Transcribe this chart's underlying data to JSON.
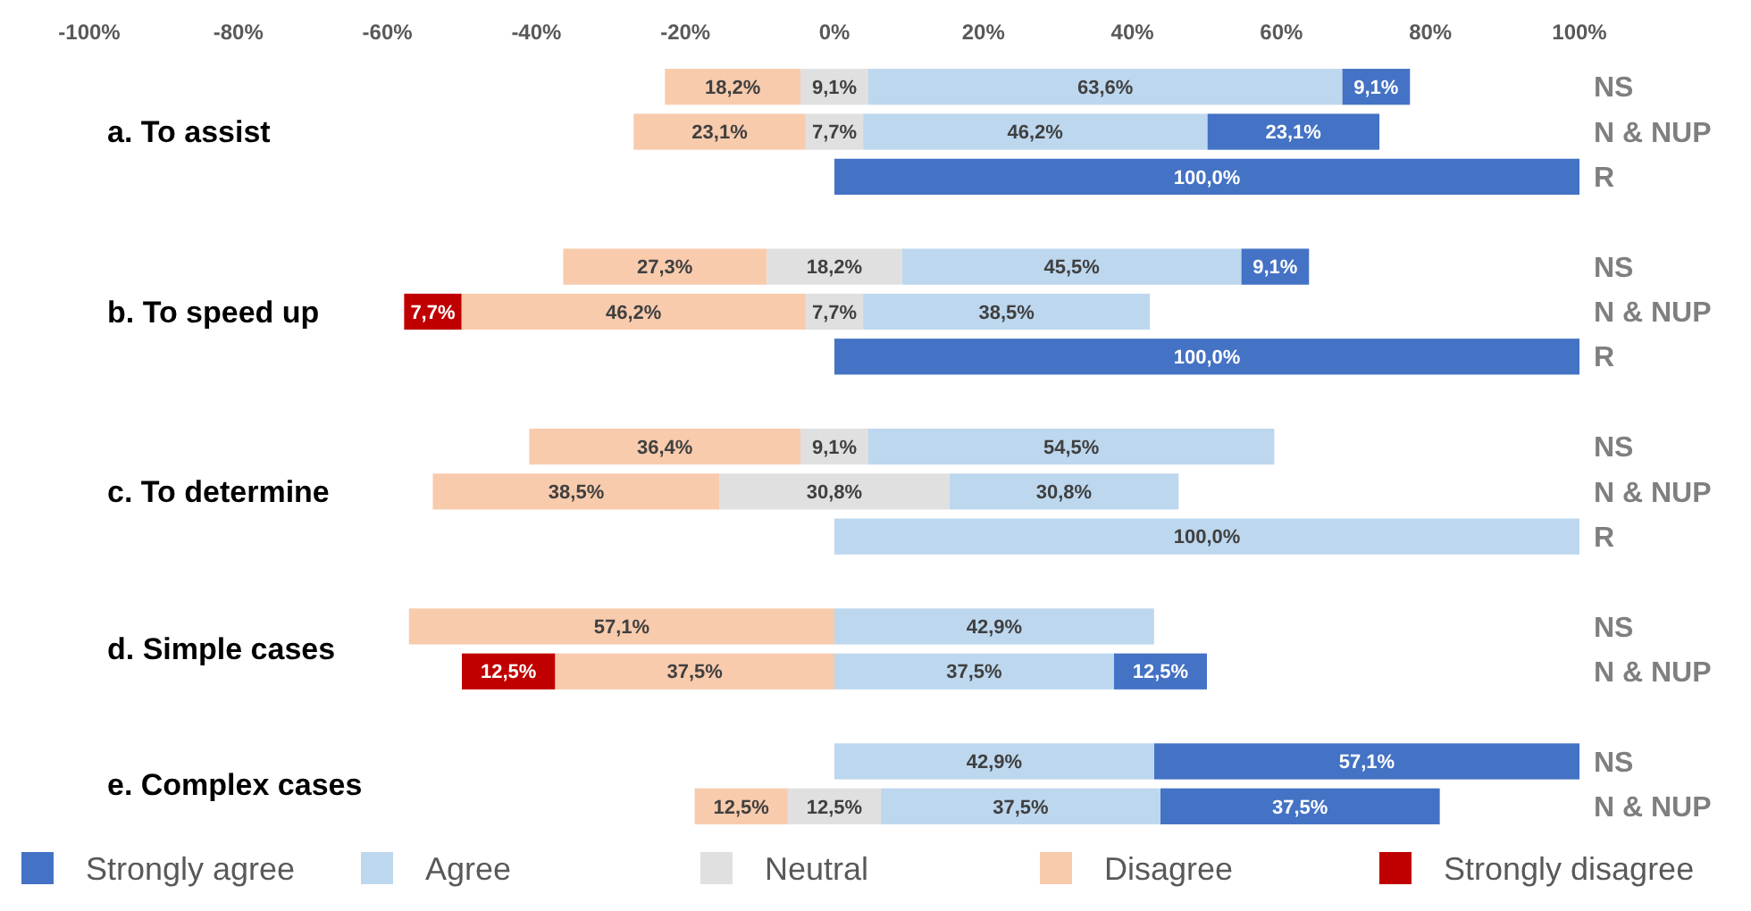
{
  "chart_data": {
    "type": "bar",
    "orientation": "horizontal",
    "legend": "bottom",
    "categories": [
      "NS",
      "N & NUP",
      "R",
      null,
      "NS",
      "N & NUP",
      "R",
      null,
      "NS",
      "N & NUP",
      "R",
      null,
      "NS",
      "N & NUP",
      null,
      "NS",
      "N & NUP"
    ],
    "annotations": [
      "a. To assist",
      "b. To speed up",
      "c. To determine",
      "d. Simple cases",
      "e. Complex cases"
    ],
    "xlim": [
      -100,
      100
    ],
    "xticks": [
      {
        "value": -100,
        "label": "-100%"
      },
      {
        "value": -80,
        "label": "-80%"
      },
      {
        "value": -60,
        "label": "-60%"
      },
      {
        "value": -40,
        "label": "-40%"
      },
      {
        "value": -20,
        "label": "-20%"
      },
      {
        "value": 0,
        "label": "0%"
      },
      {
        "value": 20,
        "label": "20%"
      },
      {
        "value": 40,
        "label": "40%"
      },
      {
        "value": 60,
        "label": "60%"
      },
      {
        "value": 80,
        "label": "80%"
      },
      {
        "value": 100,
        "label": "100%"
      }
    ],
    "series": [
      {
        "name": "Strongly agree",
        "color": "#4472c4",
        "values": [
          9.1,
          23.1,
          100,
          null,
          9.1,
          null,
          100,
          null,
          null,
          null,
          null,
          null,
          null,
          12.5,
          null,
          57.1,
          37.5
        ],
        "base": [
          68.15,
          50.05,
          0,
          null,
          54.6,
          null,
          0,
          null,
          null,
          null,
          null,
          null,
          null,
          37.5,
          null,
          42.9,
          43.75
        ],
        "value_labels": [
          "9,1%",
          "23,1%",
          "100,0%",
          null,
          "9,1%",
          null,
          "100,0%",
          null,
          null,
          null,
          null,
          null,
          null,
          "12,5%",
          null,
          "57,1%",
          "37,5%"
        ]
      },
      {
        "name": "Agree",
        "color": "#bdd7ee",
        "values": [
          63.6,
          46.2,
          null,
          null,
          45.5,
          38.5,
          null,
          null,
          54.5,
          30.8,
          100,
          null,
          42.9,
          37.5,
          null,
          42.9,
          37.5
        ],
        "base": [
          4.55,
          3.85,
          null,
          null,
          9.1,
          3.85,
          null,
          null,
          4.55,
          15.4,
          0,
          null,
          0,
          0,
          null,
          0,
          6.25
        ],
        "value_labels": [
          "63,6%",
          "46,2%",
          null,
          null,
          "45,5%",
          "38,5%",
          null,
          null,
          "54,5%",
          "30,8%",
          "100,0%",
          null,
          "42,9%",
          "37,5%",
          null,
          "42,9%",
          "37,5%"
        ]
      },
      {
        "name": "Neutral",
        "color": "#e0e0e0",
        "values": [
          9.1,
          7.7,
          null,
          null,
          18.2,
          7.7,
          null,
          null,
          9.1,
          30.8,
          null,
          null,
          null,
          null,
          null,
          null,
          12.5
        ],
        "base": [
          -4.55,
          -3.85,
          null,
          null,
          -9.1,
          -3.85,
          null,
          null,
          -4.55,
          -15.4,
          null,
          null,
          null,
          null,
          null,
          null,
          -6.25
        ],
        "value_labels": [
          "9,1%",
          "7,7%",
          null,
          null,
          "18,2%",
          "7,7%",
          null,
          null,
          "9,1%",
          "30,8%",
          null,
          null,
          null,
          null,
          null,
          null,
          "12,5%"
        ]
      },
      {
        "name": "Disagree",
        "color": "#f8cbad",
        "values": [
          18.2,
          23.1,
          null,
          null,
          27.3,
          46.2,
          null,
          null,
          36.4,
          38.5,
          null,
          null,
          57.1,
          37.5,
          null,
          null,
          12.5
        ],
        "base": [
          -22.75,
          -26.95,
          null,
          null,
          -36.4,
          -50.05,
          null,
          null,
          -40.95,
          -53.9,
          null,
          null,
          -57.1,
          -37.5,
          null,
          null,
          -18.75
        ],
        "value_labels": [
          "18,2%",
          "23,1%",
          null,
          null,
          "27,3%",
          "46,2%",
          null,
          null,
          "36,4%",
          "38,5%",
          null,
          null,
          "57,1%",
          "37,5%",
          null,
          null,
          "12,5%"
        ]
      },
      {
        "name": "Strongly disagree",
        "color": "#c00000",
        "values": [
          null,
          null,
          null,
          null,
          null,
          7.7,
          null,
          null,
          null,
          null,
          null,
          null,
          null,
          12.5,
          null,
          null,
          null
        ],
        "base": [
          null,
          null,
          null,
          null,
          null,
          -57.75,
          null,
          null,
          null,
          null,
          null,
          null,
          null,
          -50,
          null,
          null,
          null
        ],
        "value_labels": [
          null,
          null,
          null,
          null,
          null,
          "7,7%",
          null,
          null,
          null,
          null,
          null,
          null,
          null,
          "12,5%",
          null,
          null,
          null
        ]
      }
    ]
  }
}
